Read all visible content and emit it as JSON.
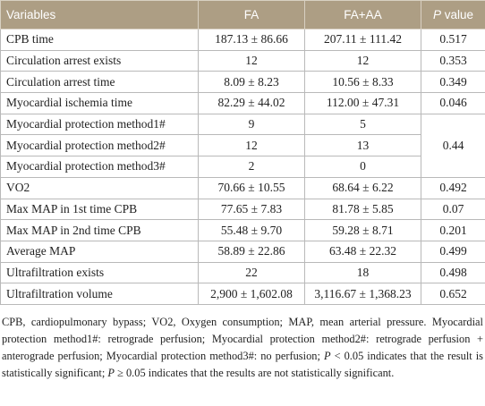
{
  "header": {
    "cells": [
      "Variables",
      "FA",
      "FA+AA"
    ],
    "p_label": {
      "symbol": "P",
      "text": "value"
    }
  },
  "table": {
    "rows": [
      [
        "CPB time",
        "187.13 ± 86.66",
        "207.11 ± 111.42",
        "0.517"
      ],
      [
        "Circulation arrest exists",
        "12",
        "12",
        "0.353"
      ],
      [
        "Circulation arrest time",
        "8.09 ± 8.23",
        "10.56 ± 8.33",
        "0.349"
      ],
      [
        "Myocardial ischemia time",
        "82.29 ± 44.02",
        "112.00 ± 47.31",
        "0.046"
      ],
      [
        "Myocardial protection method1#",
        "9",
        "5",
        "0.44"
      ],
      [
        "Myocardial protection method2#",
        "12",
        "13"
      ],
      [
        "Myocardial protection method3#",
        "2",
        "0"
      ],
      [
        "VO2",
        "70.66 ± 10.55",
        "68.64 ± 6.22",
        "0.492"
      ],
      [
        "Max MAP in 1st time CPB",
        "77.65 ± 7.83",
        "81.78 ± 5.85",
        "0.07"
      ],
      [
        "Max MAP in 2nd time CPB",
        "55.48 ± 9.70",
        "59.28 ± 8.71",
        "0.201"
      ],
      [
        "Average MAP",
        "58.89 ± 22.86",
        "63.48 ± 22.32",
        "0.499"
      ],
      [
        "Ultrafiltration exists",
        "22",
        "18",
        "0.498"
      ],
      [
        "Ultrafiltration volume",
        "2,900 ± 1,602.08",
        "3,116.67 ± 1,368.23",
        "0.652"
      ]
    ]
  },
  "footnote": [
    "CPB, cardiopulmonary bypass; VO2, Oxygen consumption; MAP, mean arterial pressure. Myocardial protection method1#: retrograde perfusion; Myocardial protection method2#: retrograde perfusion + anterograde perfusion; Myocardial protection method3#: no perfusion; ",
    "P",
    " < 0.05 indicates that the result is statistically significant; ",
    "P",
    " ≥ 0.05 indicates that the results are not statistically significant."
  ]
}
